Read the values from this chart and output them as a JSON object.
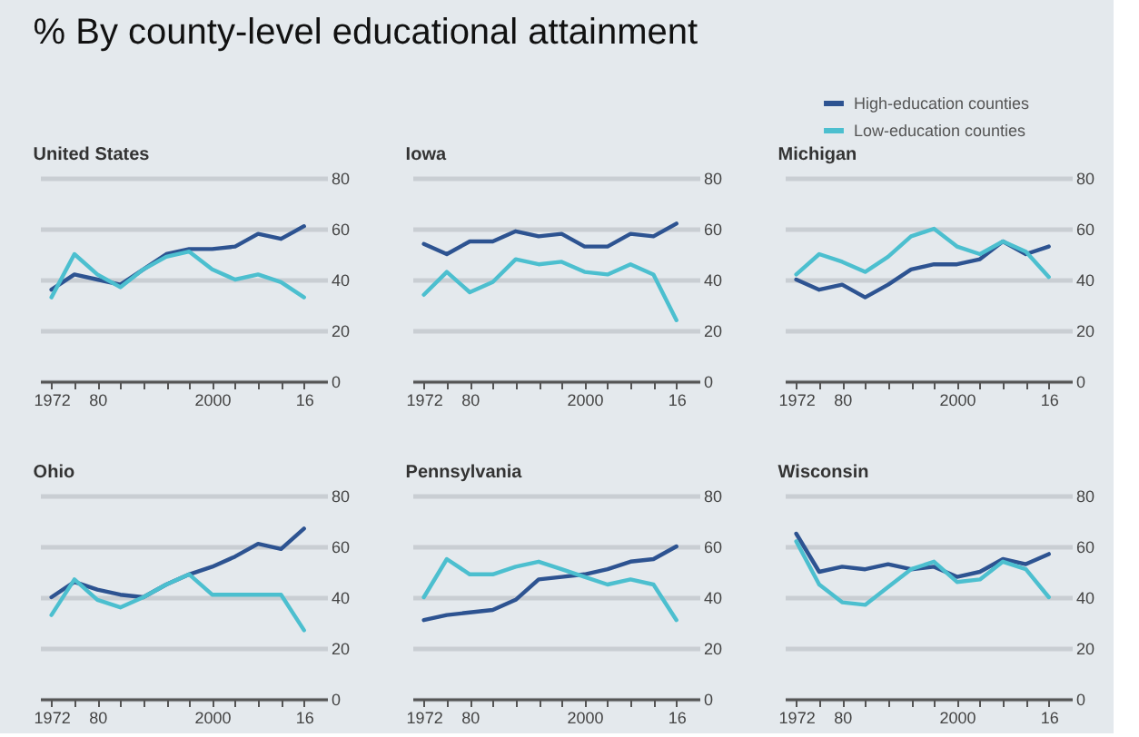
{
  "chart_data": [
    {
      "type": "other",
      "title": "% By county-level educational attainment"
    },
    {
      "type": "line",
      "title": "United States",
      "x": [
        1972,
        1976,
        1980,
        1984,
        1988,
        1992,
        1996,
        2000,
        2004,
        2008,
        2012,
        2016
      ],
      "xlim": [
        1970,
        2020
      ],
      "xticks": [
        {
          "value": 1972,
          "label": "1972"
        },
        {
          "value": 1976,
          "label": null
        },
        {
          "value": 1980,
          "label": "80"
        },
        {
          "value": 1984,
          "label": null
        },
        {
          "value": 1988,
          "label": null
        },
        {
          "value": 1992,
          "label": null
        },
        {
          "value": 1996,
          "label": null
        },
        {
          "value": 2000,
          "label": "2000"
        },
        {
          "value": 2004,
          "label": null
        },
        {
          "value": 2008,
          "label": null
        },
        {
          "value": 2012,
          "label": null
        },
        {
          "value": 2016,
          "label": "16"
        }
      ],
      "ylim": [
        0,
        80
      ],
      "yticks": [
        0,
        20,
        40,
        60,
        80
      ],
      "grid": "y",
      "legend": "top right",
      "series": [
        {
          "name": "High-education counties",
          "color": "#2d5391",
          "values": [
            36,
            42,
            40,
            38,
            44,
            50,
            52,
            52,
            53,
            58,
            56,
            61
          ]
        },
        {
          "name": "Low-education counties",
          "color": "#4cbfcf",
          "values": [
            33,
            50,
            42,
            37,
            44,
            49,
            51,
            44,
            40,
            42,
            39,
            33
          ]
        }
      ]
    },
    {
      "type": "line",
      "title": "Iowa",
      "x": [
        1972,
        1976,
        1980,
        1984,
        1988,
        1992,
        1996,
        2000,
        2004,
        2008,
        2012,
        2016
      ],
      "xlim": [
        1970,
        2020
      ],
      "xticks": [
        {
          "value": 1972,
          "label": "1972"
        },
        {
          "value": 1976,
          "label": null
        },
        {
          "value": 1980,
          "label": "80"
        },
        {
          "value": 1984,
          "label": null
        },
        {
          "value": 1988,
          "label": null
        },
        {
          "value": 1992,
          "label": null
        },
        {
          "value": 1996,
          "label": null
        },
        {
          "value": 2000,
          "label": "2000"
        },
        {
          "value": 2004,
          "label": null
        },
        {
          "value": 2008,
          "label": null
        },
        {
          "value": 2012,
          "label": null
        },
        {
          "value": 2016,
          "label": "16"
        }
      ],
      "ylim": [
        0,
        80
      ],
      "yticks": [
        0,
        20,
        40,
        60,
        80
      ],
      "grid": "y",
      "legend": "top right",
      "series": [
        {
          "name": "High-education counties",
          "color": "#2d5391",
          "values": [
            54,
            50,
            55,
            55,
            59,
            57,
            58,
            53,
            53,
            58,
            57,
            62
          ]
        },
        {
          "name": "Low-education counties",
          "color": "#4cbfcf",
          "values": [
            34,
            43,
            35,
            39,
            48,
            46,
            47,
            43,
            42,
            46,
            42,
            24
          ]
        }
      ]
    },
    {
      "type": "line",
      "title": "Michigan",
      "x": [
        1972,
        1976,
        1980,
        1984,
        1988,
        1992,
        1996,
        2000,
        2004,
        2008,
        2012,
        2016
      ],
      "xlim": [
        1970,
        2020
      ],
      "xticks": [
        {
          "value": 1972,
          "label": "1972"
        },
        {
          "value": 1976,
          "label": null
        },
        {
          "value": 1980,
          "label": "80"
        },
        {
          "value": 1984,
          "label": null
        },
        {
          "value": 1988,
          "label": null
        },
        {
          "value": 1992,
          "label": null
        },
        {
          "value": 1996,
          "label": null
        },
        {
          "value": 2000,
          "label": "2000"
        },
        {
          "value": 2004,
          "label": null
        },
        {
          "value": 2008,
          "label": null
        },
        {
          "value": 2012,
          "label": null
        },
        {
          "value": 2016,
          "label": "16"
        }
      ],
      "ylim": [
        0,
        80
      ],
      "yticks": [
        0,
        20,
        40,
        60,
        80
      ],
      "grid": "y",
      "legend": "top right",
      "series": [
        {
          "name": "High-education counties",
          "color": "#2d5391",
          "values": [
            40,
            36,
            38,
            33,
            38,
            44,
            46,
            46,
            48,
            55,
            50,
            53
          ]
        },
        {
          "name": "Low-education counties",
          "color": "#4cbfcf",
          "values": [
            42,
            50,
            47,
            43,
            49,
            57,
            60,
            53,
            50,
            55,
            51,
            41
          ]
        }
      ]
    },
    {
      "type": "line",
      "title": "Ohio",
      "x": [
        1972,
        1976,
        1980,
        1984,
        1988,
        1992,
        1996,
        2000,
        2004,
        2008,
        2012,
        2016
      ],
      "xlim": [
        1970,
        2020
      ],
      "xticks": [
        {
          "value": 1972,
          "label": "1972"
        },
        {
          "value": 1976,
          "label": null
        },
        {
          "value": 1980,
          "label": "80"
        },
        {
          "value": 1984,
          "label": null
        },
        {
          "value": 1988,
          "label": null
        },
        {
          "value": 1992,
          "label": null
        },
        {
          "value": 1996,
          "label": null
        },
        {
          "value": 2000,
          "label": "2000"
        },
        {
          "value": 2004,
          "label": null
        },
        {
          "value": 2008,
          "label": null
        },
        {
          "value": 2012,
          "label": null
        },
        {
          "value": 2016,
          "label": "16"
        }
      ],
      "ylim": [
        0,
        80
      ],
      "yticks": [
        0,
        20,
        40,
        60,
        80
      ],
      "grid": "y",
      "legend": "top right",
      "series": [
        {
          "name": "High-education counties",
          "color": "#2d5391",
          "values": [
            40,
            46,
            43,
            41,
            40,
            45,
            49,
            52,
            56,
            61,
            59,
            67
          ]
        },
        {
          "name": "Low-education counties",
          "color": "#4cbfcf",
          "values": [
            33,
            47,
            39,
            36,
            40,
            45,
            49,
            41,
            41,
            41,
            41,
            27
          ]
        }
      ]
    },
    {
      "type": "line",
      "title": "Pennsylvania",
      "x": [
        1972,
        1976,
        1980,
        1984,
        1988,
        1992,
        1996,
        2000,
        2004,
        2008,
        2012,
        2016
      ],
      "xlim": [
        1970,
        2020
      ],
      "xticks": [
        {
          "value": 1972,
          "label": "1972"
        },
        {
          "value": 1976,
          "label": null
        },
        {
          "value": 1980,
          "label": "80"
        },
        {
          "value": 1984,
          "label": null
        },
        {
          "value": 1988,
          "label": null
        },
        {
          "value": 1992,
          "label": null
        },
        {
          "value": 1996,
          "label": null
        },
        {
          "value": 2000,
          "label": "2000"
        },
        {
          "value": 2004,
          "label": null
        },
        {
          "value": 2008,
          "label": null
        },
        {
          "value": 2012,
          "label": null
        },
        {
          "value": 2016,
          "label": "16"
        }
      ],
      "ylim": [
        0,
        80
      ],
      "yticks": [
        0,
        20,
        40,
        60,
        80
      ],
      "grid": "y",
      "legend": "top right",
      "series": [
        {
          "name": "High-education counties",
          "color": "#2d5391",
          "values": [
            31,
            33,
            34,
            35,
            39,
            47,
            48,
            49,
            51,
            54,
            55,
            60
          ]
        },
        {
          "name": "Low-education counties",
          "color": "#4cbfcf",
          "values": [
            40,
            55,
            49,
            49,
            52,
            54,
            51,
            48,
            45,
            47,
            45,
            31
          ]
        }
      ]
    },
    {
      "type": "line",
      "title": "Wisconsin",
      "x": [
        1972,
        1976,
        1980,
        1984,
        1988,
        1992,
        1996,
        2000,
        2004,
        2008,
        2012,
        2016
      ],
      "xlim": [
        1970,
        2020
      ],
      "xticks": [
        {
          "value": 1972,
          "label": "1972"
        },
        {
          "value": 1976,
          "label": null
        },
        {
          "value": 1980,
          "label": "80"
        },
        {
          "value": 1984,
          "label": null
        },
        {
          "value": 1988,
          "label": null
        },
        {
          "value": 1992,
          "label": null
        },
        {
          "value": 1996,
          "label": null
        },
        {
          "value": 2000,
          "label": "2000"
        },
        {
          "value": 2004,
          "label": null
        },
        {
          "value": 2008,
          "label": null
        },
        {
          "value": 2012,
          "label": null
        },
        {
          "value": 2016,
          "label": "16"
        }
      ],
      "ylim": [
        0,
        80
      ],
      "yticks": [
        0,
        20,
        40,
        60,
        80
      ],
      "grid": "y",
      "legend": "top right",
      "series": [
        {
          "name": "High-education counties",
          "color": "#2d5391",
          "values": [
            65,
            50,
            52,
            51,
            53,
            51,
            52,
            48,
            50,
            55,
            53,
            57
          ]
        },
        {
          "name": "Low-education counties",
          "color": "#4cbfcf",
          "values": [
            62,
            45,
            38,
            37,
            44,
            51,
            54,
            46,
            47,
            54,
            51,
            40
          ]
        }
      ]
    }
  ]
}
